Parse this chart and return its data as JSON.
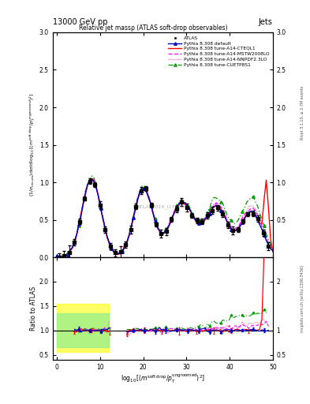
{
  "title_top": "13000 GeV pp",
  "title_right": "Jets",
  "plot_title": "Relative jet massρ (ATLAS soft-drop observables)",
  "ylabel_main": "(1/σ_{resum}) dσ/d log_{10}[(m^{soft drop}/p_T^{ungroomed})^2]",
  "ylabel_ratio": "Ratio to ATLAS",
  "right_label_main": "Rivet 3.1.10, ≥ 2.7M events",
  "right_label_ratio": "mcplots.cern.ch [arXiv:1306.3436]",
  "xlim": [
    -1,
    50
  ],
  "ylim_main": [
    0,
    3
  ],
  "ylim_ratio": [
    0.4,
    2.5
  ],
  "yticks_main": [
    0,
    0.5,
    1.0,
    1.5,
    2.0,
    2.5,
    3.0
  ],
  "yticks_ratio": [
    0.5,
    1.0,
    1.5,
    2.0
  ],
  "xticks": [
    0,
    10,
    20,
    30,
    40,
    50
  ],
  "watermark": "ATLAS2019_I1772563",
  "colors": {
    "atlas": "#000000",
    "default": "#0000cc",
    "cteql1": "#ff0000",
    "mstw": "#ff00ff",
    "nnpdf": "#ff69b4",
    "cuetp": "#009900"
  },
  "legend_entries": [
    "ATLAS",
    "Pythia 8.308 default",
    "Pythia 8.308 tune-A14-CTEQL1",
    "Pythia 8.308 tune-A14-MSTW2008LO",
    "Pythia 8.308 tune-A14-NNPDF2.3LO",
    "Pythia 8.308 tune-CUETP8S1"
  ]
}
